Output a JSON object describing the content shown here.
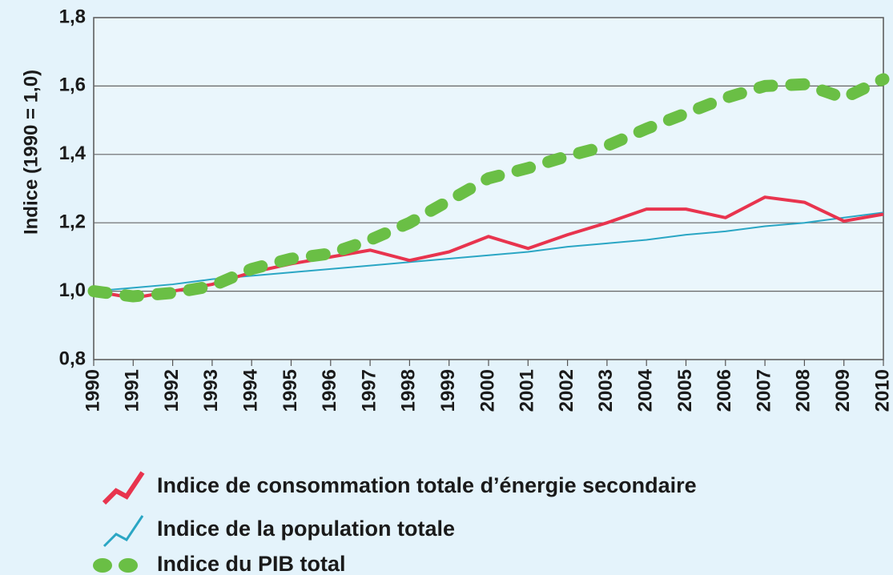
{
  "chart_data": {
    "type": "line",
    "y_label": "Indice (1990 = 1,0)",
    "categories": [
      "1990",
      "1991",
      "1992",
      "1993",
      "1994",
      "1995",
      "1996",
      "1997",
      "1998",
      "1999",
      "2000",
      "2001",
      "2002",
      "2003",
      "2004",
      "2005",
      "2006",
      "2007",
      "2008",
      "2009",
      "2010"
    ],
    "series": [
      {
        "name": "Indice de consommation totale d’énergie secondaire",
        "color": "#e8344e",
        "style": "solid",
        "values": [
          1.0,
          0.98,
          1.0,
          1.02,
          1.055,
          1.08,
          1.1,
          1.12,
          1.09,
          1.115,
          1.16,
          1.125,
          1.165,
          1.2,
          1.24,
          1.24,
          1.215,
          1.275,
          1.26,
          1.205,
          1.225
        ]
      },
      {
        "name": "Indice de la population totale",
        "color": "#2aa6c4",
        "style": "thin",
        "values": [
          1.0,
          1.01,
          1.02,
          1.035,
          1.045,
          1.055,
          1.065,
          1.075,
          1.085,
          1.095,
          1.105,
          1.115,
          1.13,
          1.14,
          1.15,
          1.165,
          1.175,
          1.19,
          1.2,
          1.215,
          1.23
        ]
      },
      {
        "name": "Indice du PIB total",
        "color": "#6abf45",
        "style": "dotted",
        "values": [
          1.0,
          0.985,
          0.995,
          1.015,
          1.065,
          1.095,
          1.11,
          1.15,
          1.2,
          1.265,
          1.33,
          1.36,
          1.395,
          1.425,
          1.475,
          1.52,
          1.565,
          1.6,
          1.605,
          1.565,
          1.62
        ]
      }
    ],
    "ylim": [
      0.8,
      1.8
    ],
    "yticks": [
      {
        "value": 0.8,
        "label": "0,8"
      },
      {
        "value": 1.0,
        "label": "1,0"
      },
      {
        "value": 1.2,
        "label": "1,2"
      },
      {
        "value": 1.4,
        "label": "1,4"
      },
      {
        "value": 1.6,
        "label": "1,6"
      },
      {
        "value": 1.8,
        "label": "1,8"
      }
    ],
    "grid": true
  }
}
